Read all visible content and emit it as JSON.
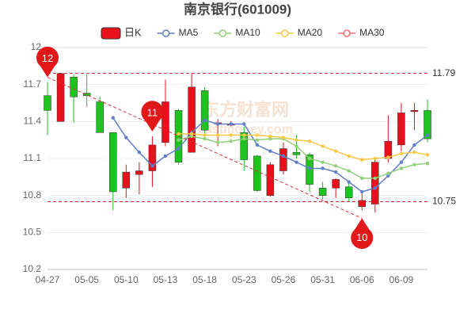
{
  "chart_data": {
    "type": "candlestick",
    "title": "南京银行(601009)",
    "watermark": [
      "东方财富网",
      "eastmoney.com"
    ],
    "categories": [
      "04-27",
      null,
      null,
      "05-05",
      null,
      null,
      "05-10",
      null,
      null,
      "05-13",
      null,
      null,
      "05-18",
      null,
      null,
      "05-23",
      null,
      null,
      "05-26",
      null,
      null,
      "05-31",
      null,
      null,
      "06-06",
      null,
      null,
      "06-09",
      null,
      null
    ],
    "ylim": [
      10.2,
      12.0
    ],
    "yticks": [
      10.2,
      10.5,
      10.8,
      11.1,
      11.4,
      11.7,
      12
    ],
    "grid": true,
    "candles": {
      "name": "日K",
      "up_color": "#e8101a",
      "down_color": "#1ec31e",
      "open": [
        11.61,
        11.4,
        11.76,
        11.63,
        11.56,
        11.31,
        10.86,
        10.97,
        11.0,
        11.23,
        11.49,
        11.15,
        11.65,
        11.38,
        11.37,
        11.31,
        11.12,
        10.8,
        11.0,
        11.15,
        11.13,
        10.86,
        10.86,
        10.87,
        10.71,
        10.73,
        11.1,
        11.21,
        11.48,
        11.49
      ],
      "close": [
        11.49,
        11.79,
        11.6,
        11.61,
        11.31,
        10.83,
        10.99,
        11.0,
        11.21,
        11.56,
        11.07,
        11.68,
        11.33,
        11.39,
        11.38,
        11.09,
        10.84,
        11.05,
        11.18,
        11.13,
        10.89,
        10.8,
        10.93,
        10.78,
        10.76,
        11.07,
        11.24,
        11.47,
        11.49,
        11.26
      ],
      "high": [
        11.72,
        11.79,
        11.78,
        11.78,
        11.6,
        11.31,
        11.05,
        11.07,
        11.28,
        11.74,
        11.5,
        11.79,
        11.68,
        11.42,
        11.4,
        11.36,
        11.13,
        11.07,
        11.23,
        11.29,
        11.15,
        10.91,
        10.94,
        10.91,
        10.84,
        11.1,
        11.45,
        11.55,
        11.55,
        11.58
      ],
      "low": [
        11.29,
        11.4,
        11.39,
        11.52,
        11.31,
        10.68,
        10.78,
        10.81,
        10.87,
        11.2,
        11.05,
        11.15,
        11.28,
        11.2,
        11.36,
        11.0,
        10.83,
        10.79,
        10.97,
        11.1,
        10.83,
        10.77,
        10.78,
        10.75,
        10.68,
        10.66,
        11.07,
        11.16,
        11.33,
        11.23
      ]
    },
    "series": [
      {
        "name": "MA5",
        "color": "#5f7fc8",
        "values": [
          null,
          null,
          null,
          null,
          null,
          11.43,
          11.27,
          11.15,
          11.04,
          11.12,
          11.18,
          11.31,
          11.41,
          11.38,
          11.38,
          11.38,
          11.21,
          11.16,
          11.12,
          11.07,
          11.02,
          11.02,
          10.99,
          10.91,
          10.83,
          10.86,
          10.96,
          11.07,
          11.21,
          11.29
        ]
      },
      {
        "name": "MA10",
        "color": "#93d07a",
        "values": [
          null,
          null,
          null,
          null,
          null,
          null,
          null,
          null,
          null,
          null,
          11.25,
          11.28,
          11.26,
          11.23,
          11.24,
          11.26,
          11.25,
          11.26,
          11.26,
          11.2,
          11.1,
          11.07,
          11.04,
          11.0,
          10.94,
          10.94,
          10.98,
          11.02,
          11.05,
          11.06
        ]
      },
      {
        "name": "MA20",
        "color": "#f5c945",
        "values": [
          null,
          null,
          null,
          null,
          null,
          null,
          null,
          null,
          null,
          null,
          11.3,
          11.3,
          11.29,
          11.29,
          11.29,
          11.29,
          11.29,
          11.28,
          11.27,
          11.25,
          11.24,
          11.2,
          11.16,
          11.12,
          11.09,
          11.1,
          11.11,
          11.14,
          11.15,
          11.13
        ]
      },
      {
        "name": "MA30",
        "color": "#f07070",
        "values": [
          null,
          null,
          null,
          null,
          null,
          null,
          null,
          null,
          null,
          null,
          null,
          null,
          null,
          null,
          null,
          null,
          null,
          null,
          null,
          null,
          null,
          null,
          null,
          null,
          null,
          null,
          null,
          null,
          null,
          null
        ]
      }
    ],
    "reference_lines": [
      {
        "value": 11.79,
        "color": "#d0202a"
      },
      {
        "value": 10.75,
        "color": "#d0202a"
      }
    ],
    "pins": [
      {
        "label": "12",
        "index": 0,
        "side": "high"
      },
      {
        "label": "11",
        "index": 8,
        "side": "high"
      },
      {
        "label": "10",
        "index": 24,
        "side": "low"
      }
    ]
  }
}
